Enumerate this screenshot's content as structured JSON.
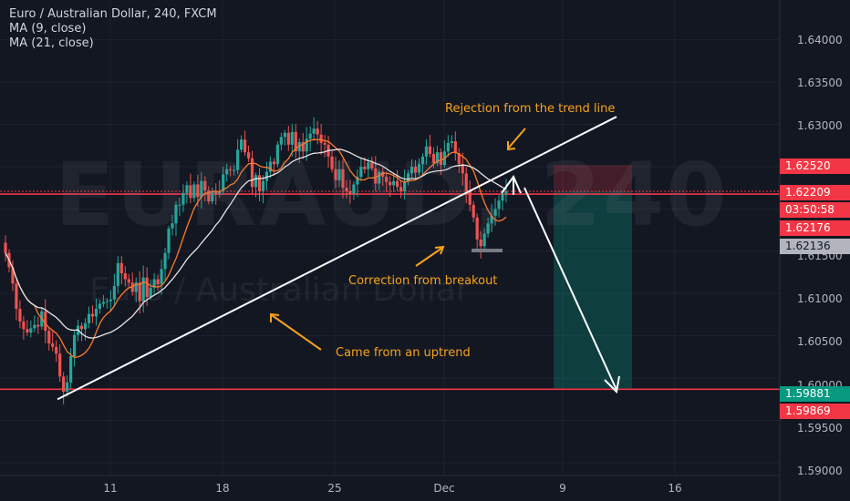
{
  "chart_data": {
    "type": "candlestick",
    "title": "Euro / Australian Dollar, 240, FXCM",
    "indicators": [
      "MA (9, close)",
      "MA (21, close)"
    ],
    "watermark": {
      "symbol": "EURAUD, 240",
      "name": "Euro / Australian Dollar"
    },
    "y_axis": {
      "ticks": [
        "1.64000",
        "1.63500",
        "1.63000",
        "1.61500",
        "1.61000",
        "1.60500",
        "1.60000",
        "1.59500",
        "1.59000"
      ],
      "ylim": [
        1.5885,
        1.6447
      ]
    },
    "x_axis": {
      "ticks": [
        "11",
        "18",
        "25",
        "Dec",
        "9",
        "16"
      ]
    },
    "price_labels": [
      {
        "value": "1.62520",
        "bg": "#f23645",
        "fg": "#ffffff"
      },
      {
        "value": "1.62209",
        "bg": "#f23645",
        "fg": "#ffffff"
      },
      {
        "value": "03:50:58",
        "bg": "#f23645",
        "fg": "#ffffff"
      },
      {
        "value": "1.62176",
        "bg": "#f23645",
        "fg": "#ffffff"
      },
      {
        "value": "1.62136",
        "bg": "#b2b5be",
        "fg": "#131722"
      },
      {
        "value": "1.59881",
        "bg": "#089981",
        "fg": "#ffffff"
      },
      {
        "value": "1.59869",
        "bg": "#f23645",
        "fg": "#ffffff"
      }
    ],
    "horizontal_levels": [
      {
        "value": 1.59869,
        "color": "#f23645",
        "style": "solid"
      },
      {
        "value": 1.62209,
        "color": "#f23645",
        "style": "dotted"
      },
      {
        "value": 1.62176,
        "color": "#f23645",
        "style": "solid"
      }
    ],
    "trend_line": {
      "from_price": 1.5975,
      "to_price": 1.6309
    },
    "short_position": {
      "entry": 1.62209,
      "stop": 1.6252,
      "target": 1.59881
    },
    "annotations": [
      {
        "id": "rejection",
        "text": "Rejection from the trend line"
      },
      {
        "id": "correction",
        "text": "Correction from breakout"
      },
      {
        "id": "uptrend",
        "text": "Came from an uptrend"
      }
    ],
    "colors": {
      "up": "#26a69a",
      "down": "#ef5350",
      "ma9": "#ff7a2b",
      "ma21": "#e6e6e6",
      "background": "#131722",
      "annotation": "#f7a21b"
    },
    "close_series": [
      1.6148,
      1.6131,
      1.6112,
      1.6082,
      1.6067,
      1.6058,
      1.6054,
      1.6059,
      1.6063,
      1.6061,
      1.6079,
      1.6056,
      1.6041,
      1.6037,
      1.6029,
      1.6002,
      1.5984,
      1.5995,
      1.6026,
      1.6051,
      1.6062,
      1.6058,
      1.6065,
      1.6076,
      1.6073,
      1.6082,
      1.6088,
      1.609,
      1.6091,
      1.6093,
      1.6109,
      1.6136,
      1.6124,
      1.6117,
      1.6113,
      1.6102,
      1.6113,
      1.6091,
      1.6119,
      1.6096,
      1.6107,
      1.6117,
      1.6111,
      1.6129,
      1.6148,
      1.6177,
      1.6183,
      1.6205,
      1.6205,
      1.6219,
      1.6228,
      1.6213,
      1.6229,
      1.6214,
      1.6233,
      1.6222,
      1.6209,
      1.6221,
      1.6218,
      1.6221,
      1.6241,
      1.6247,
      1.6246,
      1.6246,
      1.627,
      1.6282,
      1.6267,
      1.626,
      1.6226,
      1.624,
      1.6221,
      1.6233,
      1.6244,
      1.6256,
      1.6253,
      1.6276,
      1.6285,
      1.629,
      1.6276,
      1.6291,
      1.6268,
      1.6279,
      1.6268,
      1.6283,
      1.6289,
      1.6295,
      1.6288,
      1.6278,
      1.6276,
      1.6262,
      1.6247,
      1.6234,
      1.6247,
      1.6225,
      1.6221,
      1.6218,
      1.6229,
      1.6238,
      1.625,
      1.6247,
      1.6255,
      1.6248,
      1.623,
      1.6244,
      1.6238,
      1.6232,
      1.6228,
      1.6233,
      1.6226,
      1.6221,
      1.6233,
      1.6242,
      1.625,
      1.6243,
      1.6253,
      1.6262,
      1.6274,
      1.6265,
      1.6254,
      1.6267,
      1.6252,
      1.6268,
      1.6278,
      1.628,
      1.6266,
      1.6253,
      1.6242,
      1.6221,
      1.6205,
      1.619,
      1.6164,
      1.6156,
      1.6171,
      1.6183,
      1.6192,
      1.62,
      1.621,
      1.6218,
      1.6221
    ]
  }
}
